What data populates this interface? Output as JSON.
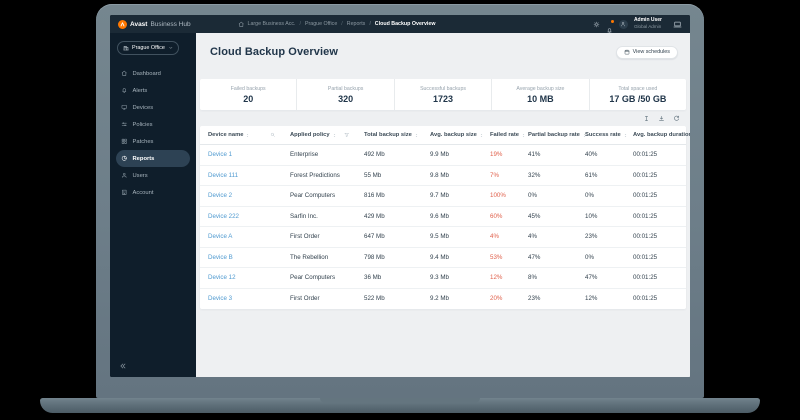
{
  "colors": {
    "brand-orange": "#ff7800",
    "topbar-bg": "#1b2a36",
    "sidebar-bg": "#0f1e2b",
    "active-item-bg": "#2d4254",
    "content-bg": "#eef0f2",
    "card-bg": "#ffffff",
    "heading": "#21364a",
    "link-blue": "#4f9ad0",
    "failed-red": "#e0604b",
    "muted": "#97a3ad"
  },
  "topbar": {
    "brand": {
      "name": "Avast",
      "suffix": "Business Hub"
    },
    "breadcrumb": [
      "Large Business Acc.",
      "Prague Office",
      "Reports",
      "Cloud Backup Overview"
    ],
    "user": {
      "name": "Admin User",
      "role": "Global Admin"
    }
  },
  "sidebar": {
    "org": {
      "label": "Prague Office"
    },
    "items": [
      {
        "icon": "dashboard",
        "label": "Dashboard"
      },
      {
        "icon": "alerts",
        "label": "Alerts"
      },
      {
        "icon": "devices",
        "label": "Devices"
      },
      {
        "icon": "policies",
        "label": "Policies"
      },
      {
        "icon": "patches",
        "label": "Patches"
      },
      {
        "icon": "reports",
        "label": "Reports",
        "active": true
      },
      {
        "icon": "users",
        "label": "Users"
      },
      {
        "icon": "account",
        "label": "Account"
      }
    ]
  },
  "main": {
    "title": "Cloud Backup Overview",
    "view_schedules_label": "View schedules",
    "stats": [
      {
        "label": "Failed backups",
        "value": "20"
      },
      {
        "label": "Partial backups",
        "value": "320"
      },
      {
        "label": "Successful backups",
        "value": "1723"
      },
      {
        "label": "Average backup size",
        "value": "10 MB"
      },
      {
        "label": "Total space used",
        "value": "17 GB /50 GB"
      }
    ],
    "toolbar_icons": [
      "columns",
      "download",
      "refresh"
    ],
    "table": {
      "columns": [
        "Device name",
        "Applied policy",
        "Total backup size",
        "Avg. backup size",
        "Failed rate",
        "Partial backup rate",
        "Success rate",
        "Avg. backup duration"
      ],
      "rows": [
        {
          "device": "Device 1",
          "policy": "Enterprise",
          "total": "492 Mb",
          "avg": "9.9 Mb",
          "failed": "19%",
          "partial": "41%",
          "success": "40%",
          "duration": "00:01:25"
        },
        {
          "device": "Device 111",
          "policy": "Forest Predictions",
          "total": "55 Mb",
          "avg": "9.8 Mb",
          "failed": "7%",
          "partial": "32%",
          "success": "61%",
          "duration": "00:01:25"
        },
        {
          "device": "Device 2",
          "policy": "Pear Computers",
          "total": "816 Mb",
          "avg": "9.7 Mb",
          "failed": "100%",
          "partial": "0%",
          "success": "0%",
          "duration": "00:01:25"
        },
        {
          "device": "Device 222",
          "policy": "Sarfin Inc.",
          "total": "429 Mb",
          "avg": "9.6 Mb",
          "failed": "60%",
          "partial": "45%",
          "success": "10%",
          "duration": "00:01:25"
        },
        {
          "device": "Device A",
          "policy": "First Order",
          "total": "647 Mb",
          "avg": "9.5 Mb",
          "failed": "4%",
          "partial": "4%",
          "success": "23%",
          "duration": "00:01:25"
        },
        {
          "device": "Device B",
          "policy": "The Rebellion",
          "total": "798 Mb",
          "avg": "9.4 Mb",
          "failed": "53%",
          "partial": "47%",
          "success": "0%",
          "duration": "00:01:25"
        },
        {
          "device": "Device 12",
          "policy": "Pear Computers",
          "total": "36 Mb",
          "avg": "9.3 Mb",
          "failed": "12%",
          "partial": "8%",
          "success": "47%",
          "duration": "00:01:25"
        },
        {
          "device": "Device 3",
          "policy": "First Order",
          "total": "522 Mb",
          "avg": "9.2 Mb",
          "failed": "20%",
          "partial": "23%",
          "success": "12%",
          "duration": "00:01:25"
        }
      ]
    }
  }
}
